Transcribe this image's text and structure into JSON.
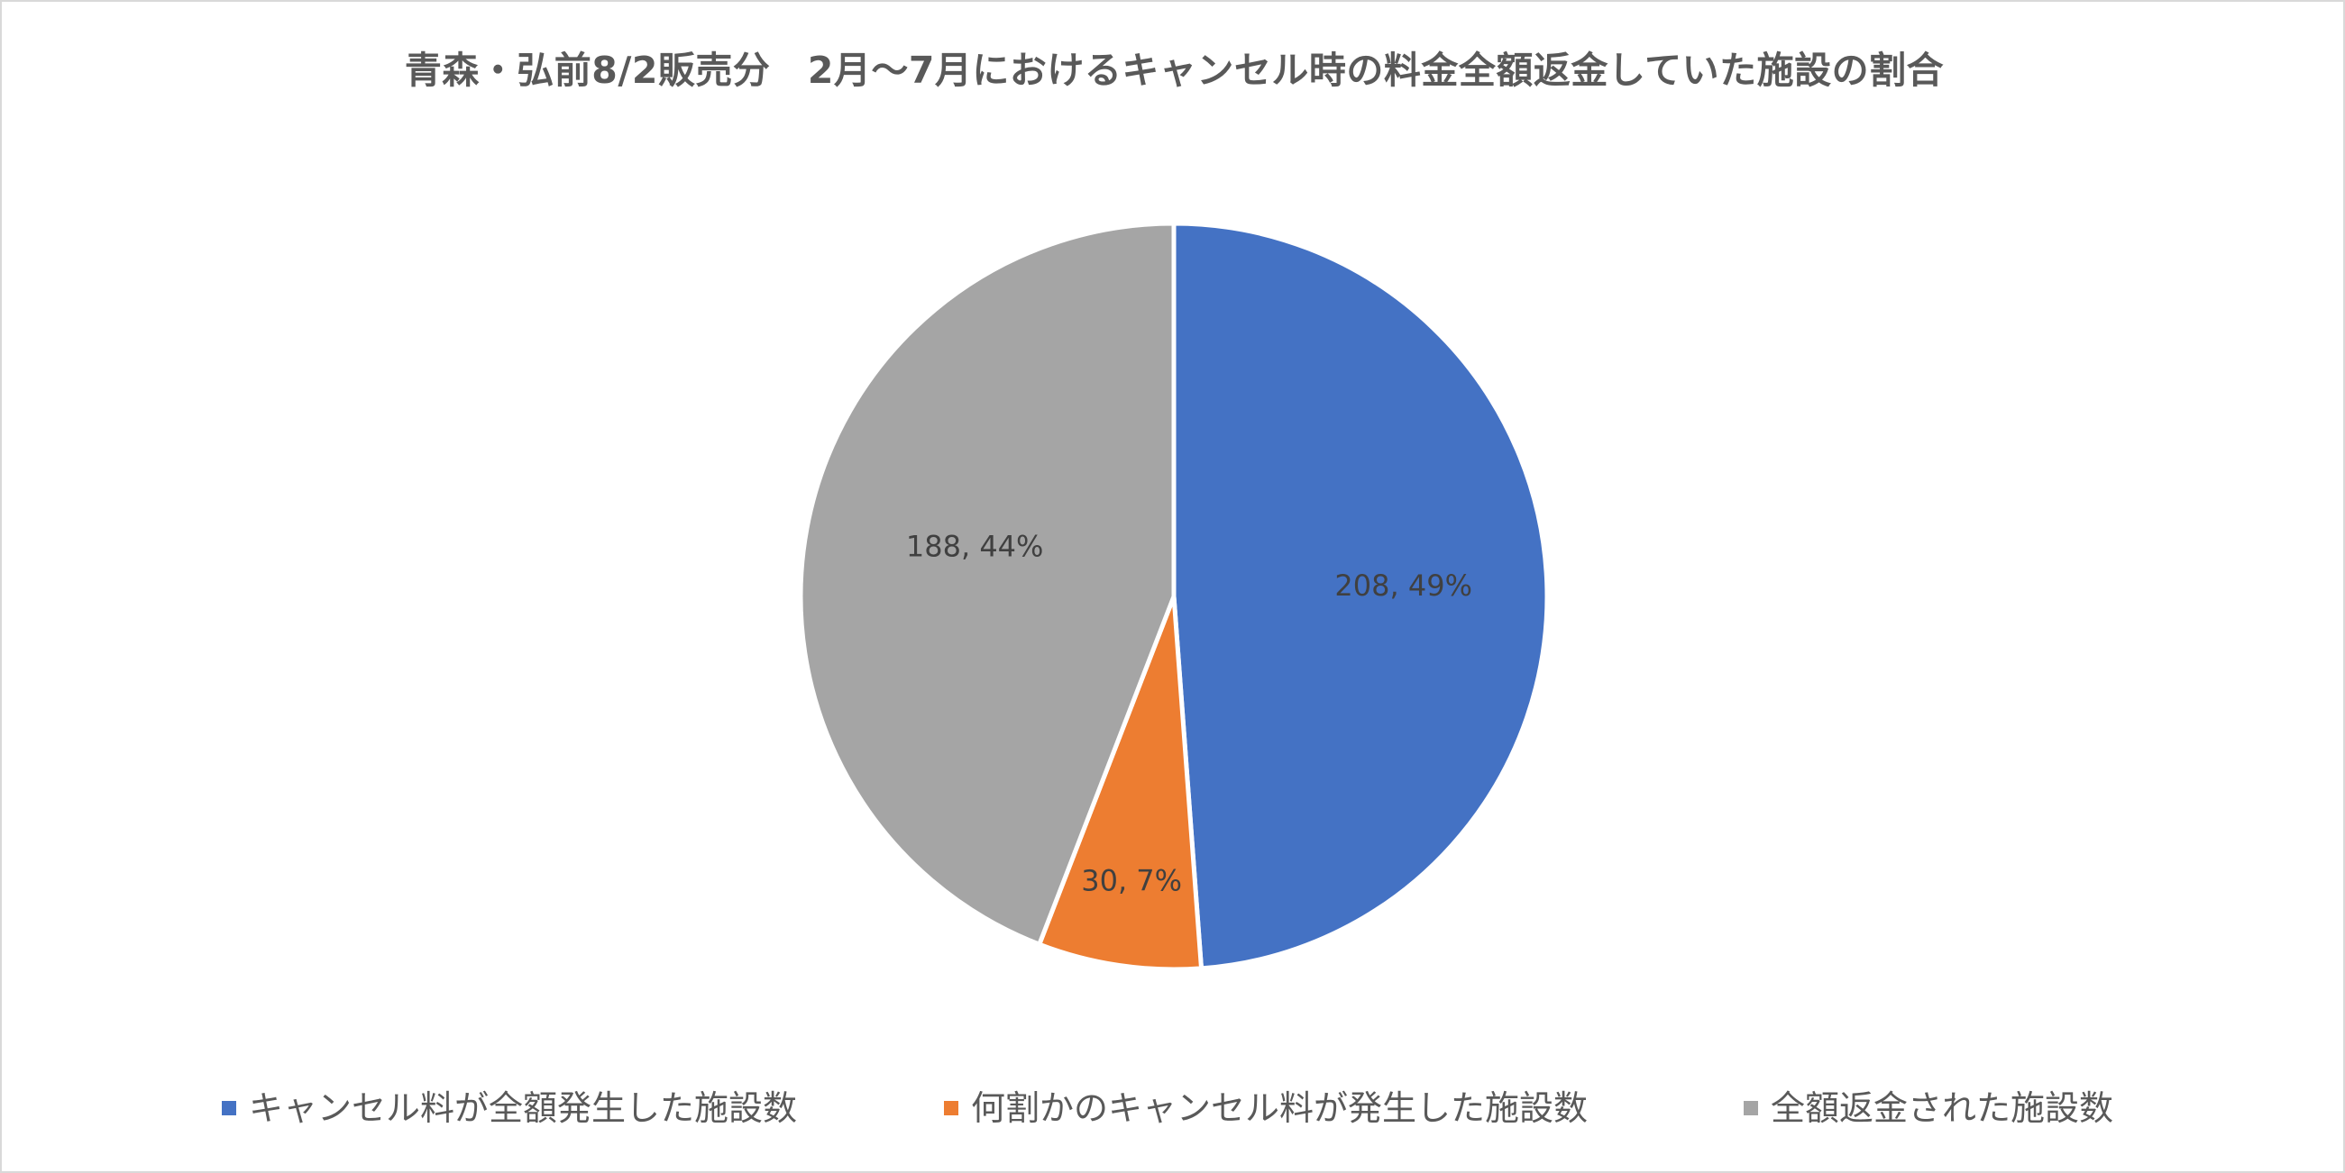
{
  "chart_data": {
    "type": "pie",
    "title": "青森・弘前8/2販売分　2月～7月におけるキャンセル時の料金全額返金していた施設の割合",
    "categories": [
      "キャンセル料が全額発生した施設数",
      "何割かのキャンセル料が発生した施設数",
      "全額返金された施設数"
    ],
    "values": [
      208,
      30,
      188
    ],
    "percent_labels": [
      "49%",
      "7%",
      "44%"
    ],
    "data_labels": [
      "208, 49%",
      "30, 7%",
      "188, 44%"
    ],
    "colors": [
      "#4472C4",
      "#ED7D31",
      "#A5A5A5"
    ],
    "start_angle_deg": 0,
    "direction": "clockwise",
    "legend_position": "bottom"
  }
}
